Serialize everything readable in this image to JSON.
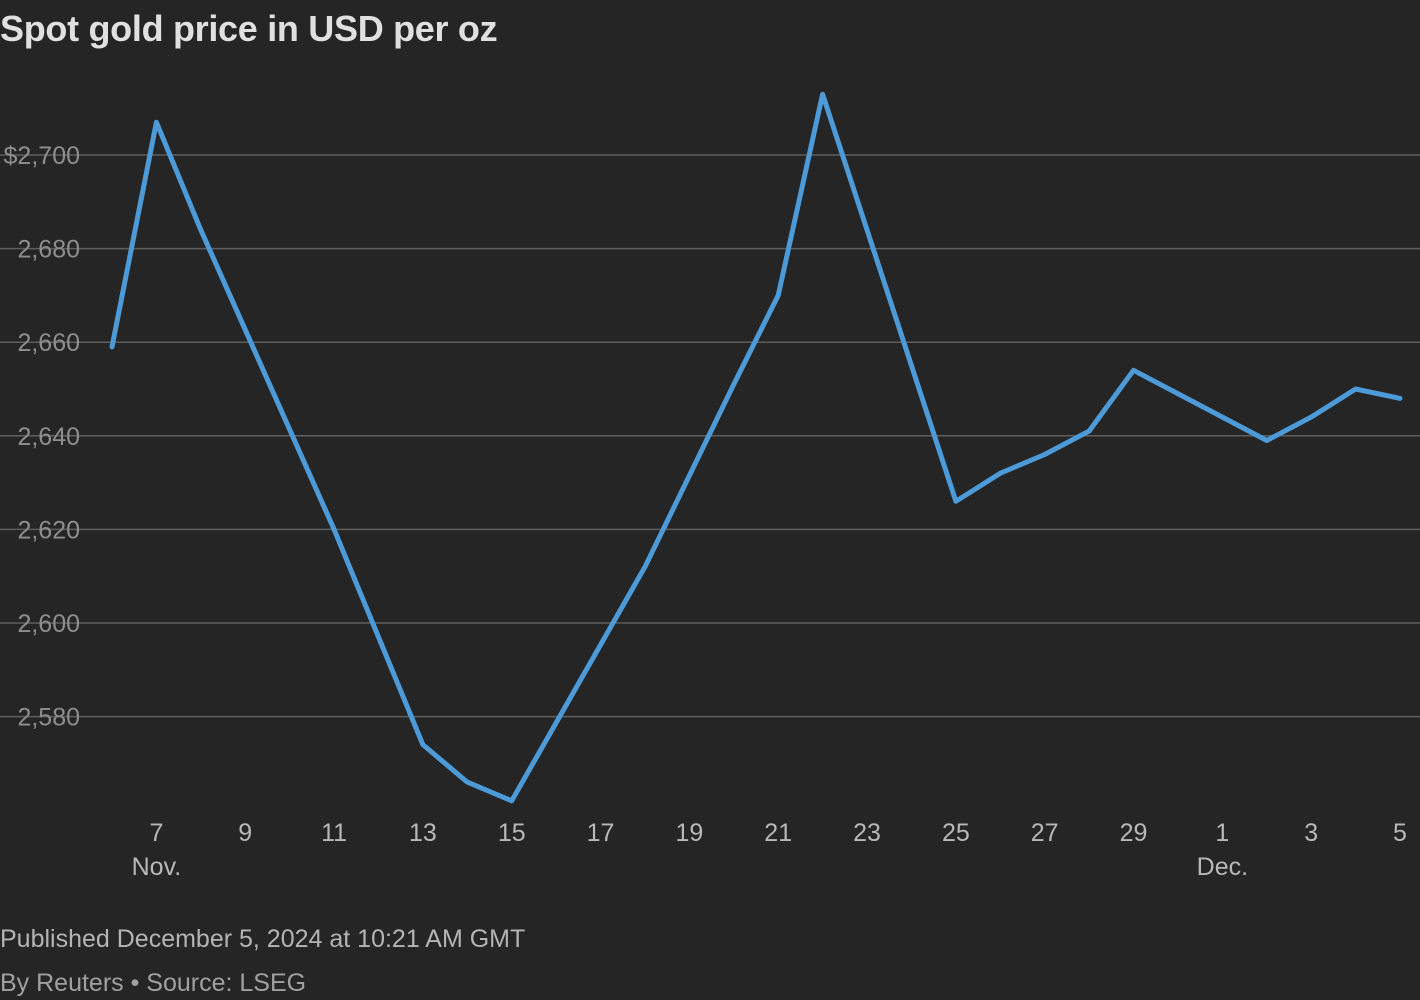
{
  "chart_data": {
    "type": "line",
    "title": "Spot gold price in USD per oz",
    "xlabel": "",
    "ylabel": "",
    "y_ticks": [
      "$2,700",
      "2,680",
      "2,660",
      "2,640",
      "2,620",
      "2,600",
      "2,580"
    ],
    "y_tick_values": [
      2700,
      2680,
      2660,
      2640,
      2620,
      2600,
      2580
    ],
    "ylim": [
      2562,
      2712
    ],
    "x_ticks": [
      {
        "date": "2024-11-07",
        "label": "7",
        "month": "Nov."
      },
      {
        "date": "2024-11-09",
        "label": "9"
      },
      {
        "date": "2024-11-11",
        "label": "11"
      },
      {
        "date": "2024-11-13",
        "label": "13"
      },
      {
        "date": "2024-11-15",
        "label": "15"
      },
      {
        "date": "2024-11-17",
        "label": "17"
      },
      {
        "date": "2024-11-19",
        "label": "19"
      },
      {
        "date": "2024-11-21",
        "label": "21"
      },
      {
        "date": "2024-11-23",
        "label": "23"
      },
      {
        "date": "2024-11-25",
        "label": "25"
      },
      {
        "date": "2024-11-27",
        "label": "27"
      },
      {
        "date": "2024-11-29",
        "label": "29"
      },
      {
        "date": "2024-12-01",
        "label": "1",
        "month": "Dec."
      },
      {
        "date": "2024-12-03",
        "label": "3"
      },
      {
        "date": "2024-12-05",
        "label": "5"
      }
    ],
    "xlim": [
      "2024-11-06",
      "2024-12-05"
    ],
    "grid": true,
    "line_color": "#4d9ad8",
    "series": [
      {
        "x": [
          "2024-11-06",
          "2024-11-07",
          "2024-11-08",
          "2024-11-11",
          "2024-11-13",
          "2024-11-14",
          "2024-11-15",
          "2024-11-18",
          "2024-11-20",
          "2024-11-21",
          "2024-11-22",
          "2024-11-25",
          "2024-11-26",
          "2024-11-27",
          "2024-11-28",
          "2024-11-29",
          "2024-12-02",
          "2024-12-03",
          "2024-12-04",
          "2024-12-05"
        ],
        "values": [
          2659,
          2707,
          2684,
          2620,
          2574,
          2566,
          2562,
          2612,
          2651,
          2670,
          2713,
          2626,
          2632,
          2636,
          2641,
          2654,
          2639,
          2644,
          2650,
          2648
        ]
      }
    ]
  },
  "footer": {
    "published": "Published December 5, 2024 at 10:21 AM GMT",
    "byline": "By Reuters • Source: LSEG"
  }
}
